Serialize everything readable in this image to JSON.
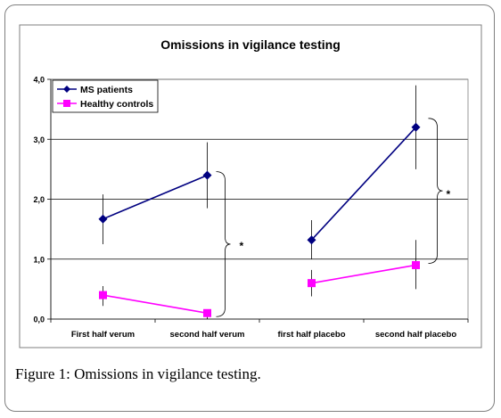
{
  "caption": {
    "label": "Figure 1:",
    "text": "Omissions in vigilance testing."
  },
  "chart_data": {
    "type": "line",
    "title": "Omissions in vigilance testing",
    "xlabel": "",
    "ylabel": "",
    "categories": [
      "First half verum",
      "second half verum",
      "first half placebo",
      "second half placebo"
    ],
    "ylim": [
      0,
      4
    ],
    "yticks": [
      "0,0",
      "1,0",
      "2,0",
      "3,0",
      "4,0"
    ],
    "ytick_values": [
      0,
      1,
      2,
      3,
      4
    ],
    "grid": "horizontal",
    "legend_placement": "top-left",
    "series": [
      {
        "name": "MS patients",
        "color": "#000080",
        "marker": "diamond",
        "segments": [
          [
            0,
            1
          ],
          [
            2,
            3
          ]
        ],
        "values": [
          1.67,
          2.4,
          1.32,
          3.2
        ],
        "err_low": [
          1.25,
          1.85,
          1.0,
          2.5
        ],
        "err_high": [
          2.08,
          2.95,
          1.65,
          3.9
        ]
      },
      {
        "name": "Healthy controls",
        "color": "#ff00ff",
        "marker": "square",
        "segments": [
          [
            0,
            1
          ],
          [
            2,
            3
          ]
        ],
        "values": [
          0.4,
          0.1,
          0.6,
          0.9
        ],
        "err_low": [
          0.22,
          0.0,
          0.38,
          0.5
        ],
        "err_high": [
          0.55,
          0.1,
          0.82,
          1.32
        ]
      }
    ],
    "annotations": [
      {
        "text": "*",
        "bracket_from": [
          1,
          "verum"
        ],
        "note": ""
      },
      {
        "text": "*",
        "bracket_from": [
          3,
          "placebo"
        ],
        "note": ""
      }
    ]
  }
}
